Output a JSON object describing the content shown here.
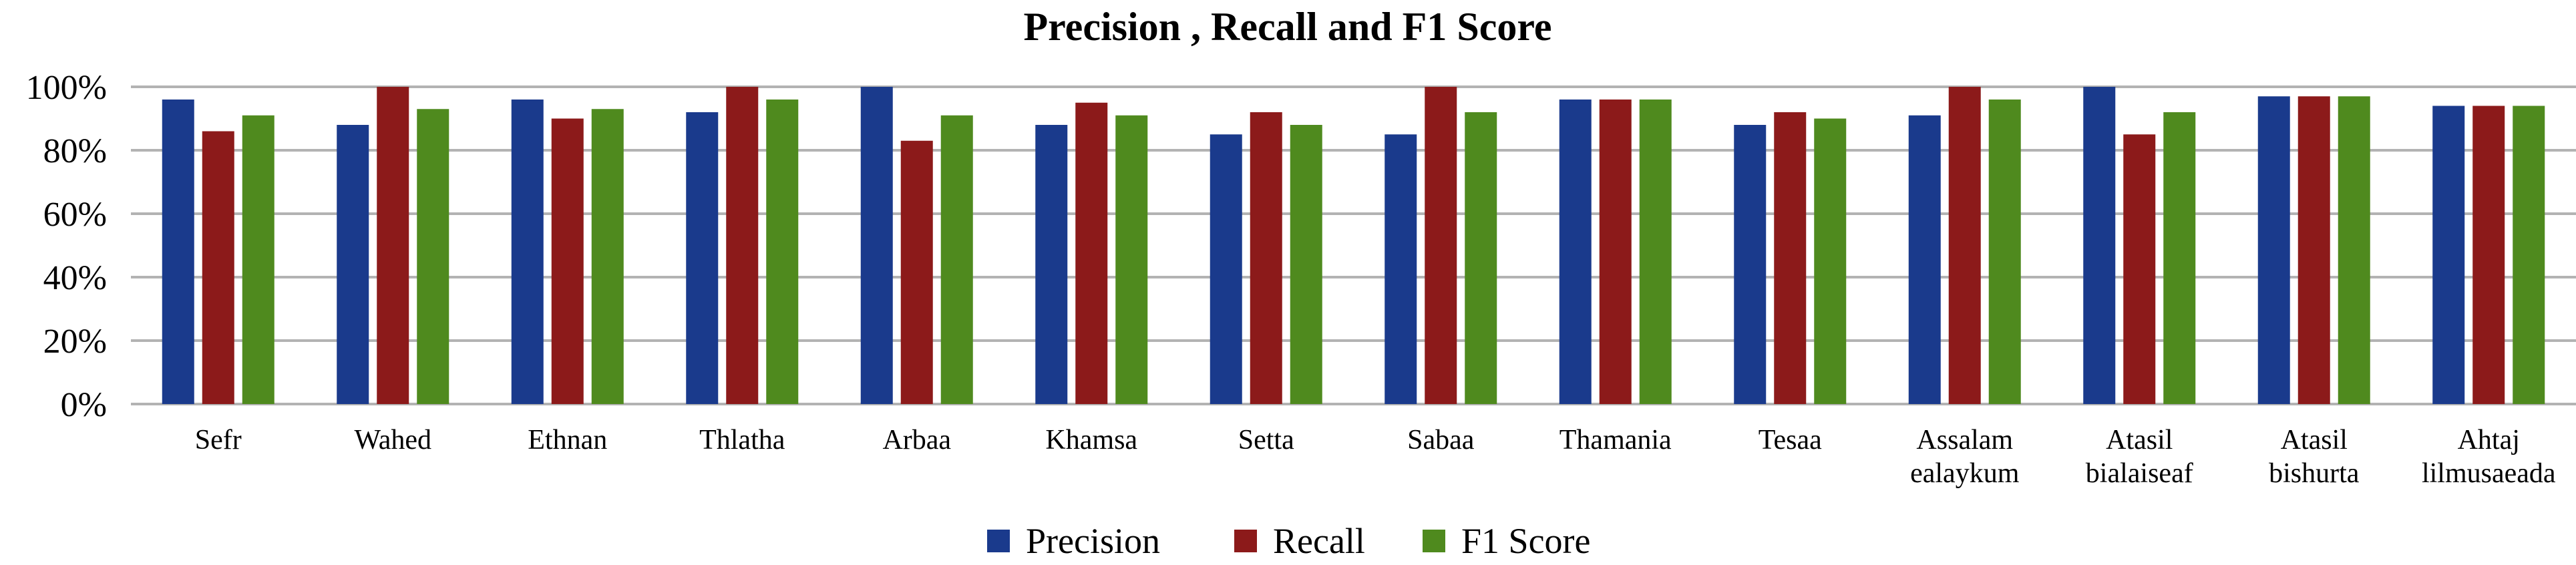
{
  "chart_data": {
    "type": "bar",
    "title": "Precision , Recall and F1 Score",
    "xlabel": "",
    "ylabel": "",
    "ylim": [
      0,
      100
    ],
    "yticks": [
      "0%",
      "20%",
      "40%",
      "60%",
      "80%",
      "100%"
    ],
    "grid": true,
    "legend_position": "bottom",
    "categories": [
      [
        "Sefr"
      ],
      [
        "Wahed"
      ],
      [
        "Ethnan"
      ],
      [
        "Thlatha"
      ],
      [
        "Arbaa"
      ],
      [
        "Khamsa"
      ],
      [
        "Setta"
      ],
      [
        "Sabaa"
      ],
      [
        "Thamania"
      ],
      [
        "Tesaa"
      ],
      [
        "Assalam",
        "ealaykum"
      ],
      [
        "Atasil",
        "bialaiseaf"
      ],
      [
        "Atasil",
        "bishurta"
      ],
      [
        "Ahtaj",
        "lilmusaeada"
      ]
    ],
    "series": [
      {
        "name": "Precision",
        "color": "#1a3a8c",
        "values": [
          96,
          88,
          96,
          92,
          100,
          88,
          85,
          85,
          96,
          88,
          91,
          100,
          97,
          94
        ]
      },
      {
        "name": "Recall",
        "color": "#8c1a1a",
        "values": [
          86,
          100,
          90,
          100,
          83,
          95,
          92,
          100,
          96,
          92,
          100,
          85,
          97,
          94
        ]
      },
      {
        "name": "F1 Score",
        "color": "#4f8a1e",
        "values": [
          91,
          93,
          93,
          96,
          91,
          91,
          88,
          92,
          96,
          90,
          96,
          92,
          97,
          94
        ]
      }
    ]
  }
}
